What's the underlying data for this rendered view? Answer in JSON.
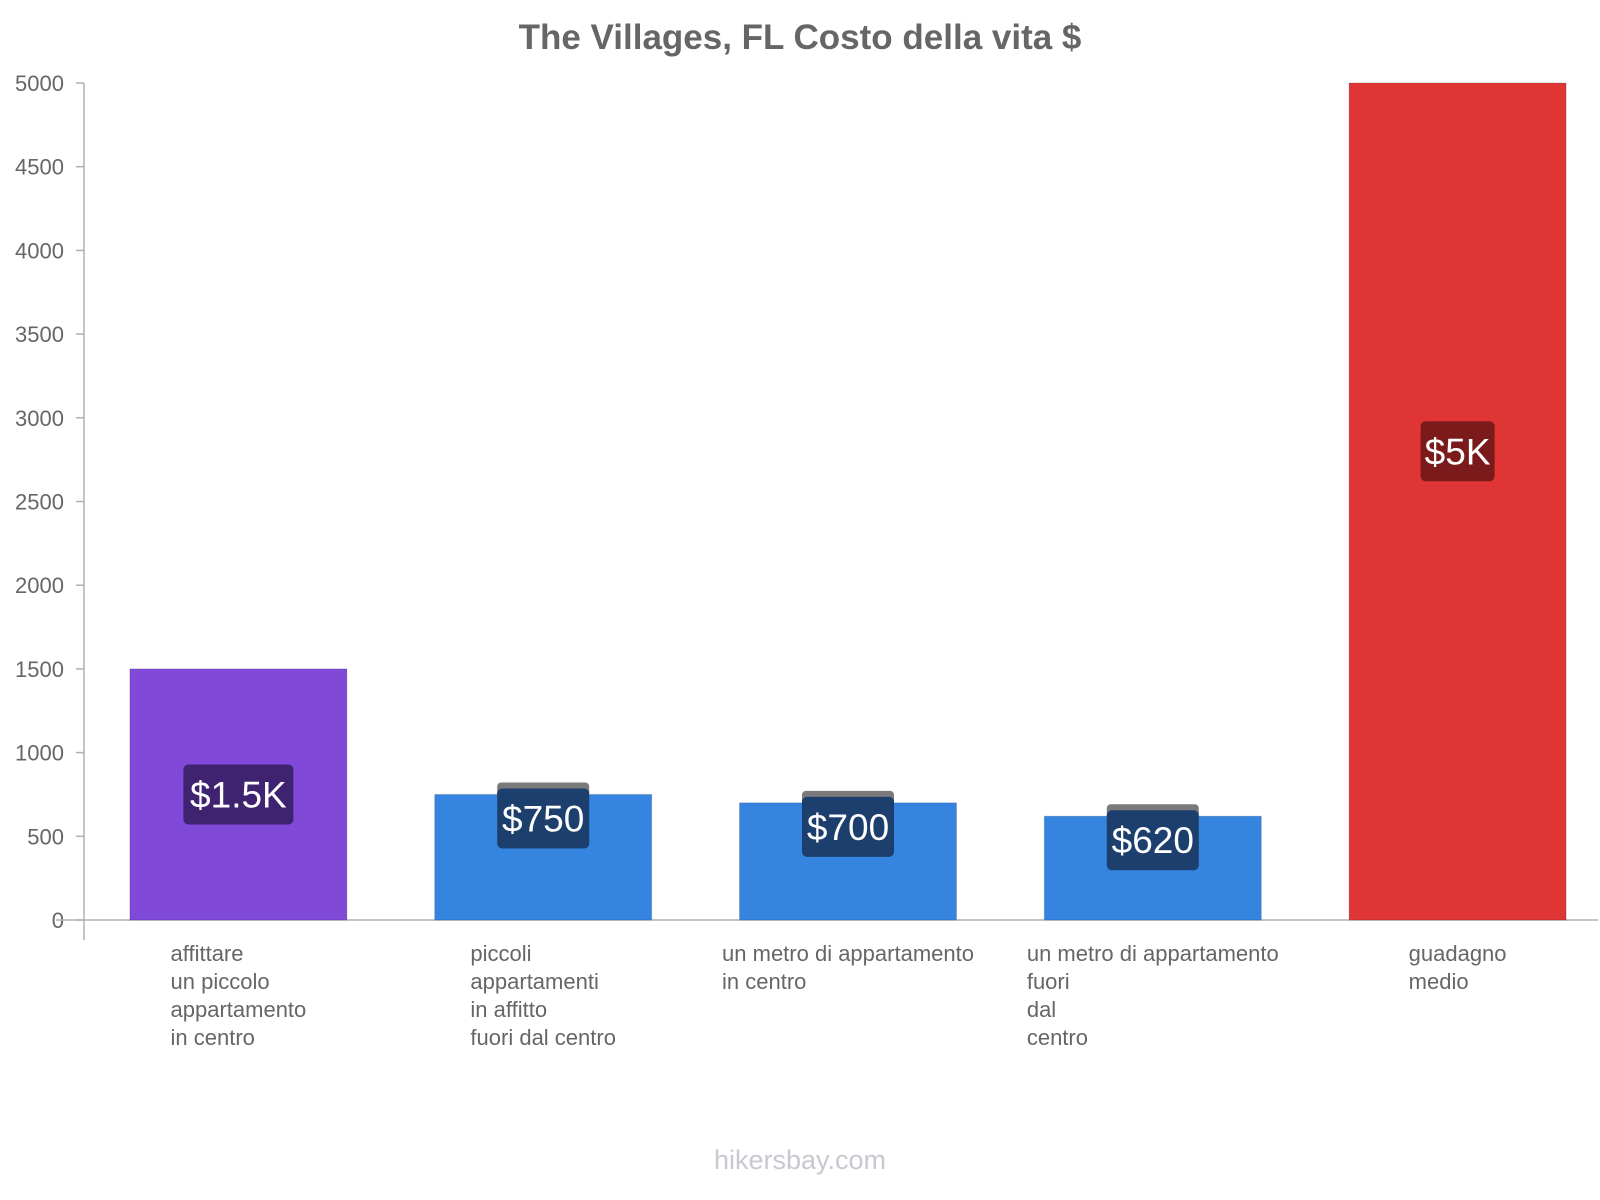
{
  "title": "The Villages, FL Costo della vita $",
  "watermark": "hikersbay.com",
  "chart_data": {
    "type": "bar",
    "title": "The Villages, FL Costo della vita $",
    "xlabel": "",
    "ylabel": "",
    "ylim": [
      0,
      5000
    ],
    "yticks": [
      0,
      500,
      1000,
      1500,
      2000,
      2500,
      3000,
      3500,
      4000,
      4500,
      5000
    ],
    "grid": false,
    "categories": [
      "affittare\nun piccolo\nappartamento\nin centro",
      "piccoli\nappartamenti\nin affitto\nfuori dal centro",
      "un metro di appartamento\nin centro",
      "un metro di appartamento\nfuori\ndal\ncentro",
      "guadagno\nmedio"
    ],
    "values": [
      1500,
      750,
      700,
      620,
      5000
    ],
    "data_labels": [
      "$1.5K",
      "$750",
      "$700",
      "$620",
      "$5K"
    ],
    "colors": [
      "#8049d8",
      "#3584df",
      "#3584df",
      "#3584df",
      "#e03535"
    ],
    "label_colors": [
      "#3f2370",
      "#1c3f6e",
      "#1c3f6e",
      "#1c3f6e",
      "#7a1a1a"
    ]
  }
}
